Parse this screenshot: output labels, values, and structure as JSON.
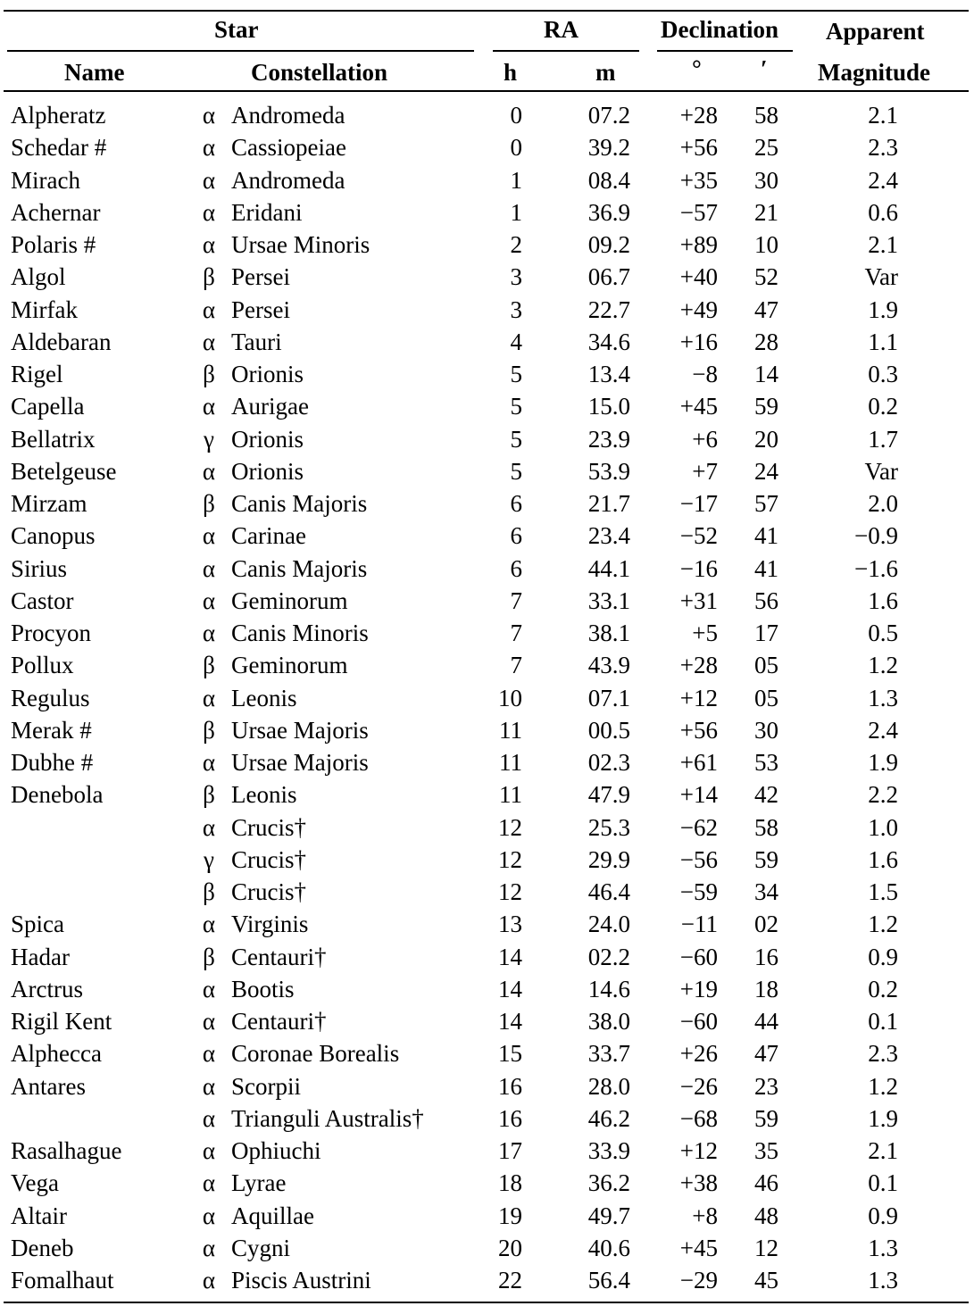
{
  "headers": {
    "star": "Star",
    "ra": "RA",
    "declination": "Declination",
    "apparent": "Apparent",
    "name": "Name",
    "constellation": "Constellation",
    "h": "h",
    "m": "m",
    "deg": "°",
    "arcmin": "′",
    "magnitude": "Magnitude"
  },
  "rows": [
    {
      "name": "Alpheratz",
      "greek": "α",
      "constellation": "Andromeda",
      "h": "0",
      "m": "07.2",
      "deg": "+28",
      "arcmin": "58",
      "mag": "2.1"
    },
    {
      "name": "Schedar #",
      "greek": "α",
      "constellation": "Cassiopeiae",
      "h": "0",
      "m": "39.2",
      "deg": "+56",
      "arcmin": "25",
      "mag": "2.3"
    },
    {
      "name": "Mirach",
      "greek": "α",
      "constellation": "Andromeda",
      "h": "1",
      "m": "08.4",
      "deg": "+35",
      "arcmin": "30",
      "mag": "2.4"
    },
    {
      "name": "Achernar",
      "greek": "α",
      "constellation": "Eridani",
      "h": "1",
      "m": "36.9",
      "deg": "−57",
      "arcmin": "21",
      "mag": "0.6"
    },
    {
      "name": "Polaris #",
      "greek": "α",
      "constellation": "Ursae Minoris",
      "h": "2",
      "m": "09.2",
      "deg": "+89",
      "arcmin": "10",
      "mag": "2.1"
    },
    {
      "name": "Algol",
      "greek": "β",
      "constellation": "Persei",
      "h": "3",
      "m": "06.7",
      "deg": "+40",
      "arcmin": "52",
      "mag": "Var"
    },
    {
      "name": "Mirfak",
      "greek": "α",
      "constellation": "Persei",
      "h": "3",
      "m": "22.7",
      "deg": "+49",
      "arcmin": "47",
      "mag": "1.9"
    },
    {
      "name": "Aldebaran",
      "greek": "α",
      "constellation": "Tauri",
      "h": "4",
      "m": "34.6",
      "deg": "+16",
      "arcmin": "28",
      "mag": "1.1"
    },
    {
      "name": "Rigel",
      "greek": "β",
      "constellation": "Orionis",
      "h": "5",
      "m": "13.4",
      "deg": "−8",
      "arcmin": "14",
      "mag": "0.3"
    },
    {
      "name": "Capella",
      "greek": "α",
      "constellation": "Aurigae",
      "h": "5",
      "m": "15.0",
      "deg": "+45",
      "arcmin": "59",
      "mag": "0.2"
    },
    {
      "name": "Bellatrix",
      "greek": "γ",
      "constellation": "Orionis",
      "h": "5",
      "m": "23.9",
      "deg": "+6",
      "arcmin": "20",
      "mag": "1.7"
    },
    {
      "name": "Betelgeuse",
      "greek": "α",
      "constellation": "Orionis",
      "h": "5",
      "m": "53.9",
      "deg": "+7",
      "arcmin": "24",
      "mag": "Var"
    },
    {
      "name": "Mirzam",
      "greek": "β",
      "constellation": "Canis Majoris",
      "h": "6",
      "m": "21.7",
      "deg": "−17",
      "arcmin": "57",
      "mag": "2.0"
    },
    {
      "name": "Canopus",
      "greek": "α",
      "constellation": "Carinae",
      "h": "6",
      "m": "23.4",
      "deg": "−52",
      "arcmin": "41",
      "mag": "−0.9"
    },
    {
      "name": "Sirius",
      "greek": "α",
      "constellation": "Canis Majoris",
      "h": "6",
      "m": "44.1",
      "deg": "−16",
      "arcmin": "41",
      "mag": "−1.6"
    },
    {
      "name": "Castor",
      "greek": "α",
      "constellation": "Geminorum",
      "h": "7",
      "m": "33.1",
      "deg": "+31",
      "arcmin": "56",
      "mag": "1.6"
    },
    {
      "name": "Procyon",
      "greek": "α",
      "constellation": "Canis Minoris",
      "h": "7",
      "m": "38.1",
      "deg": "+5",
      "arcmin": "17",
      "mag": "0.5"
    },
    {
      "name": "Pollux",
      "greek": "β",
      "constellation": "Geminorum",
      "h": "7",
      "m": "43.9",
      "deg": "+28",
      "arcmin": "05",
      "mag": "1.2"
    },
    {
      "name": "Regulus",
      "greek": "α",
      "constellation": "Leonis",
      "h": "10",
      "m": "07.1",
      "deg": "+12",
      "arcmin": "05",
      "mag": "1.3"
    },
    {
      "name": "Merak #",
      "greek": "β",
      "constellation": "Ursae Majoris",
      "h": "11",
      "m": "00.5",
      "deg": "+56",
      "arcmin": "30",
      "mag": "2.4"
    },
    {
      "name": "Dubhe #",
      "greek": "α",
      "constellation": "Ursae Majoris",
      "h": "11",
      "m": "02.3",
      "deg": "+61",
      "arcmin": "53",
      "mag": "1.9"
    },
    {
      "name": "Denebola",
      "greek": "β",
      "constellation": "Leonis",
      "h": "11",
      "m": "47.9",
      "deg": "+14",
      "arcmin": "42",
      "mag": "2.2"
    },
    {
      "name": "",
      "greek": "α",
      "constellation": "Crucis†",
      "h": "12",
      "m": "25.3",
      "deg": "−62",
      "arcmin": "58",
      "mag": "1.0"
    },
    {
      "name": "",
      "greek": "γ",
      "constellation": "Crucis†",
      "h": "12",
      "m": "29.9",
      "deg": "−56",
      "arcmin": "59",
      "mag": "1.6"
    },
    {
      "name": "",
      "greek": "β",
      "constellation": "Crucis†",
      "h": "12",
      "m": "46.4",
      "deg": "−59",
      "arcmin": "34",
      "mag": "1.5"
    },
    {
      "name": "Spica",
      "greek": "α",
      "constellation": "Virginis",
      "h": "13",
      "m": "24.0",
      "deg": "−11",
      "arcmin": "02",
      "mag": "1.2"
    },
    {
      "name": "Hadar",
      "greek": "β",
      "constellation": "Centauri†",
      "h": "14",
      "m": "02.2",
      "deg": "−60",
      "arcmin": "16",
      "mag": "0.9"
    },
    {
      "name": "Arctrus",
      "greek": "α",
      "constellation": "Bootis",
      "h": "14",
      "m": "14.6",
      "deg": "+19",
      "arcmin": "18",
      "mag": "0.2"
    },
    {
      "name": "Rigil Kent",
      "greek": "α",
      "constellation": "Centauri†",
      "h": "14",
      "m": "38.0",
      "deg": "−60",
      "arcmin": "44",
      "mag": "0.1"
    },
    {
      "name": "Alphecca",
      "greek": "α",
      "constellation": "Coronae Borealis",
      "h": "15",
      "m": "33.7",
      "deg": "+26",
      "arcmin": "47",
      "mag": "2.3"
    },
    {
      "name": "Antares",
      "greek": "α",
      "constellation": "Scorpii",
      "h": "16",
      "m": "28.0",
      "deg": "−26",
      "arcmin": "23",
      "mag": "1.2"
    },
    {
      "name": "",
      "greek": "α",
      "constellation": "Trianguli Australis†",
      "h": "16",
      "m": "46.2",
      "deg": "−68",
      "arcmin": "59",
      "mag": "1.9"
    },
    {
      "name": "Rasalhague",
      "greek": "α",
      "constellation": "Ophiuchi",
      "h": "17",
      "m": "33.9",
      "deg": "+12",
      "arcmin": "35",
      "mag": "2.1"
    },
    {
      "name": "Vega",
      "greek": "α",
      "constellation": "Lyrae",
      "h": "18",
      "m": "36.2",
      "deg": "+38",
      "arcmin": "46",
      "mag": "0.1"
    },
    {
      "name": "Altair",
      "greek": "α",
      "constellation": "Aquillae",
      "h": "19",
      "m": "49.7",
      "deg": "+8",
      "arcmin": "48",
      "mag": "0.9"
    },
    {
      "name": "Deneb",
      "greek": "α",
      "constellation": "Cygni",
      "h": "20",
      "m": "40.6",
      "deg": "+45",
      "arcmin": "12",
      "mag": "1.3"
    },
    {
      "name": "Fomalhaut",
      "greek": "α",
      "constellation": "Piscis Austrini",
      "h": "22",
      "m": "56.4",
      "deg": "−29",
      "arcmin": "45",
      "mag": "1.3"
    }
  ]
}
